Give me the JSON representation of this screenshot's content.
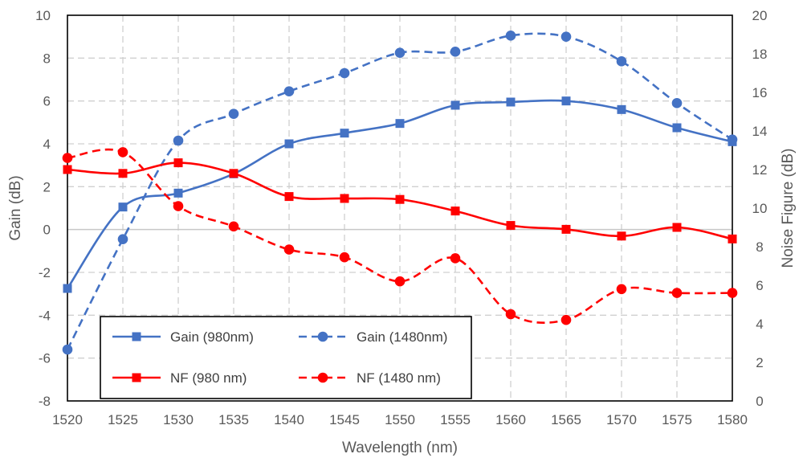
{
  "chart_data": {
    "type": "line",
    "xlabel": "Wavelength (nm)",
    "ylabel": "Gain (dB)",
    "y2label": "Noise Figure (dB)",
    "x": [
      1520,
      1525,
      1530,
      1535,
      1540,
      1545,
      1550,
      1555,
      1560,
      1565,
      1570,
      1575,
      1580
    ],
    "xlim": [
      1520,
      1580
    ],
    "ylim": [
      -8,
      10
    ],
    "y2lim": [
      0,
      20
    ],
    "x_ticks": [
      "1520",
      "1525",
      "1530",
      "1535",
      "1540",
      "1545",
      "1550",
      "1555",
      "1560",
      "1565",
      "1570",
      "1575",
      "1580"
    ],
    "y_ticks": [
      "-8",
      "-6",
      "-4",
      "-2",
      "0",
      "2",
      "4",
      "6",
      "8",
      "10"
    ],
    "y2_ticks": [
      "0",
      "2",
      "4",
      "6",
      "8",
      "10",
      "12",
      "14",
      "16",
      "18",
      "20"
    ],
    "grid": true,
    "legend_position": "bottom-left",
    "series": [
      {
        "name": "Gain (980nm)",
        "axis": "left",
        "color": "#4472C4",
        "marker": "square",
        "dash": "solid",
        "values": [
          -2.75,
          1.05,
          1.7,
          2.6,
          4.0,
          4.5,
          4.95,
          5.8,
          5.95,
          6.0,
          5.6,
          4.75,
          4.1
        ]
      },
      {
        "name": "Gain (1480nm)",
        "axis": "left",
        "color": "#4472C4",
        "marker": "circle",
        "dash": "dashed",
        "values": [
          -5.6,
          -0.45,
          4.15,
          5.4,
          6.45,
          7.3,
          8.25,
          8.3,
          9.05,
          9.0,
          7.85,
          5.9,
          4.2
        ]
      },
      {
        "name": "NF (980 nm)",
        "axis": "right",
        "color": "#FF0000",
        "marker": "square",
        "dash": "solid",
        "values": [
          12.0,
          11.8,
          12.35,
          11.8,
          10.6,
          10.5,
          10.45,
          9.85,
          9.1,
          8.9,
          8.55,
          9.0,
          8.4
        ]
      },
      {
        "name": "NF (1480 nm)",
        "axis": "right",
        "color": "#FF0000",
        "marker": "circle",
        "dash": "dashed",
        "values": [
          12.6,
          12.9,
          10.1,
          9.05,
          7.85,
          7.45,
          6.2,
          7.4,
          4.5,
          4.2,
          5.8,
          5.6,
          5.6
        ]
      }
    ]
  }
}
